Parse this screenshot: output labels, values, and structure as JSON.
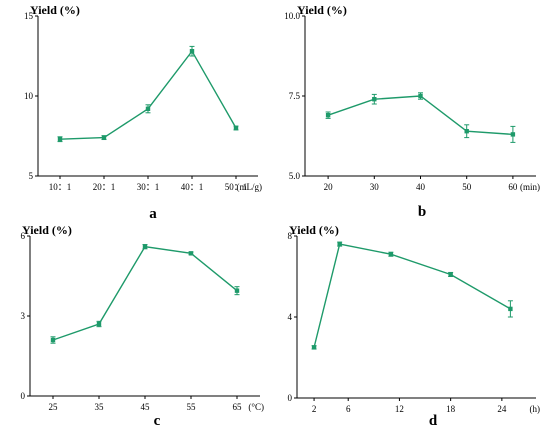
{
  "chart_data": [
    {
      "panel": "a",
      "type": "line",
      "ylabel": "Yield (%)",
      "xunit": "(mL/g)",
      "categories": [
        "10：1",
        "20：1",
        "30：1",
        "40：1",
        "50：1"
      ],
      "values": [
        7.3,
        7.4,
        9.2,
        12.8,
        8.0
      ],
      "errors": [
        0.15,
        0.12,
        0.25,
        0.3,
        0.12
      ],
      "ylim": [
        5,
        15
      ],
      "yticks": [
        "5",
        "10",
        "15"
      ],
      "color": "#1e9a6a"
    },
    {
      "panel": "b",
      "type": "line",
      "ylabel": "Yield (%)",
      "xunit": "(min)",
      "categories": [
        "20",
        "30",
        "40",
        "50",
        "60"
      ],
      "values": [
        6.9,
        7.4,
        7.5,
        6.4,
        6.3
      ],
      "errors": [
        0.1,
        0.15,
        0.1,
        0.2,
        0.25
      ],
      "ylim": [
        5.0,
        10.0
      ],
      "yticks": [
        "5.0",
        "7.5",
        "10.0"
      ],
      "color": "#1e9a6a"
    },
    {
      "panel": "c",
      "type": "line",
      "ylabel": "Yield (%)",
      "xunit": "(°C)",
      "categories": [
        "25",
        "35",
        "45",
        "55",
        "65"
      ],
      "values": [
        2.1,
        2.7,
        5.6,
        5.35,
        3.95
      ],
      "errors": [
        0.12,
        0.1,
        0.08,
        0.05,
        0.15
      ],
      "ylim": [
        0,
        6
      ],
      "yticks": [
        "0",
        "3",
        "6"
      ],
      "color": "#1e9a6a"
    },
    {
      "panel": "d",
      "type": "line",
      "ylabel": "Yield (%)",
      "xunit": "(h)",
      "x": [
        2,
        5,
        11,
        18,
        25
      ],
      "values": [
        2.5,
        7.6,
        7.1,
        6.1,
        4.4
      ],
      "errors": [
        0.08,
        0.1,
        0.1,
        0.1,
        0.4
      ],
      "xlim": [
        0,
        28
      ],
      "xticks": [
        2,
        6,
        12,
        18,
        24
      ],
      "ylim": [
        0,
        8
      ],
      "yticks": [
        "0",
        "4",
        "8"
      ],
      "color": "#1e9a6a"
    }
  ]
}
